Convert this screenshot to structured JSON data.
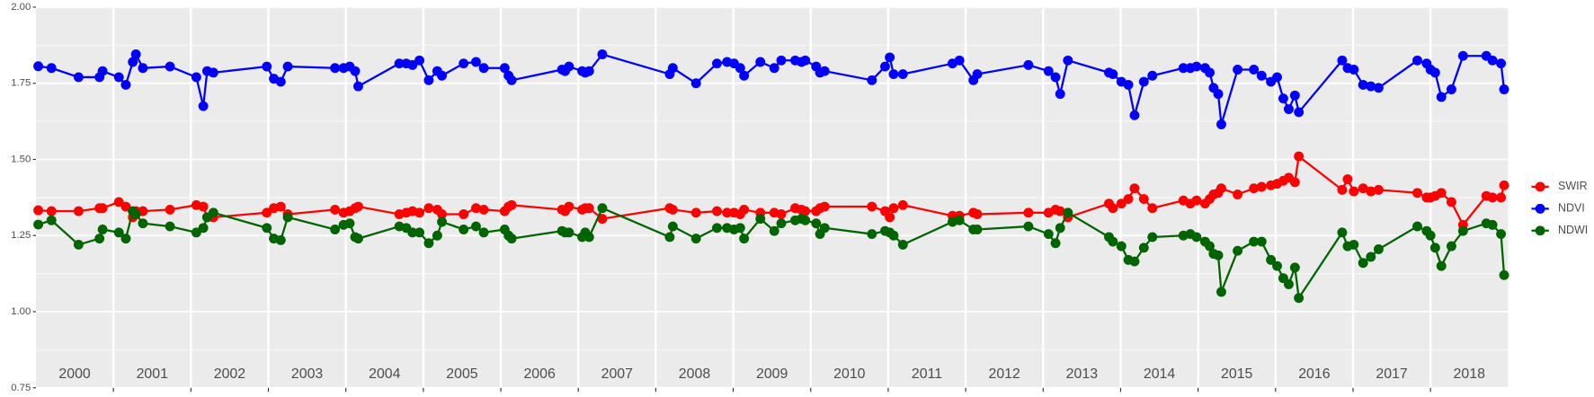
{
  "chart_data": {
    "type": "line",
    "x": [
      2000.03,
      2000.2,
      2000.55,
      2000.82,
      2000.86,
      2001.07,
      2001.16,
      2001.25,
      2001.29,
      2001.38,
      2001.73,
      2002.07,
      2002.16,
      2002.21,
      2002.29,
      2002.98,
      2003.07,
      2003.16,
      2003.25,
      2003.86,
      2003.97,
      2004.05,
      2004.12,
      2004.16,
      2004.69,
      2004.78,
      2004.86,
      2004.95,
      2005.07,
      2005.18,
      2005.24,
      2005.52,
      2005.68,
      2005.78,
      2006.05,
      2006.1,
      2006.14,
      2006.79,
      2006.83,
      2006.88,
      2007.05,
      2007.09,
      2007.14,
      2007.31,
      2008.18,
      2008.22,
      2008.52,
      2008.79,
      2008.92,
      2009.01,
      2009.09,
      2009.14,
      2009.35,
      2009.53,
      2009.62,
      2009.8,
      2009.88,
      2009.93,
      2010.07,
      2010.12,
      2010.18,
      2010.79,
      2010.96,
      2011.02,
      2011.07,
      2011.19,
      2011.83,
      2011.92,
      2012.1,
      2012.15,
      2012.81,
      2013.07,
      2013.16,
      2013.22,
      2013.32,
      2013.85,
      2013.9,
      2014.01,
      2014.1,
      2014.18,
      2014.3,
      2014.41,
      2014.81,
      2014.9,
      2014.98,
      2015.09,
      2015.15,
      2015.2,
      2015.26,
      2015.3,
      2015.51,
      2015.72,
      2015.82,
      2015.94,
      2016.02,
      2016.1,
      2016.17,
      2016.25,
      2016.3,
      2016.86,
      2016.93,
      2017.01,
      2017.13,
      2017.23,
      2017.33,
      2017.83,
      2017.95,
      2018.0,
      2018.06,
      2018.14,
      2018.27,
      2018.42,
      2018.72,
      2018.8,
      2018.91,
      2018.95
    ],
    "series": [
      {
        "name": "SWIR",
        "color": "#ff0000",
        "values": [
          1.333,
          1.33,
          1.33,
          1.34,
          1.34,
          1.36,
          1.345,
          1.31,
          1.33,
          1.33,
          1.335,
          1.35,
          1.345,
          1.31,
          1.31,
          1.325,
          1.34,
          1.345,
          1.32,
          1.335,
          1.325,
          1.33,
          1.34,
          1.345,
          1.32,
          1.325,
          1.33,
          1.325,
          1.34,
          1.335,
          1.32,
          1.32,
          1.34,
          1.335,
          1.33,
          1.345,
          1.35,
          1.335,
          1.33,
          1.345,
          1.335,
          1.34,
          1.34,
          1.305,
          1.34,
          1.335,
          1.325,
          1.33,
          1.325,
          1.325,
          1.32,
          1.335,
          1.325,
          1.325,
          1.32,
          1.34,
          1.335,
          1.33,
          1.33,
          1.34,
          1.345,
          1.345,
          1.33,
          1.31,
          1.34,
          1.35,
          1.315,
          1.315,
          1.325,
          1.32,
          1.325,
          1.325,
          1.335,
          1.33,
          1.31,
          1.355,
          1.34,
          1.355,
          1.37,
          1.405,
          1.37,
          1.34,
          1.365,
          1.355,
          1.365,
          1.355,
          1.37,
          1.385,
          1.39,
          1.405,
          1.385,
          1.405,
          1.41,
          1.415,
          1.42,
          1.43,
          1.44,
          1.425,
          1.51,
          1.4,
          1.435,
          1.395,
          1.405,
          1.395,
          1.4,
          1.39,
          1.375,
          1.375,
          1.38,
          1.39,
          1.36,
          1.285,
          1.38,
          1.375,
          1.375,
          1.415
        ]
      },
      {
        "name": "NDVI",
        "color": "#0000ff",
        "values": [
          1.806,
          1.8,
          1.77,
          1.77,
          1.79,
          1.77,
          1.745,
          1.82,
          1.845,
          1.8,
          1.805,
          1.77,
          1.675,
          1.79,
          1.785,
          1.805,
          1.765,
          1.755,
          1.805,
          1.8,
          1.8,
          1.805,
          1.79,
          1.74,
          1.815,
          1.815,
          1.81,
          1.825,
          1.76,
          1.79,
          1.775,
          1.815,
          1.82,
          1.8,
          1.8,
          1.775,
          1.76,
          1.795,
          1.79,
          1.805,
          1.79,
          1.785,
          1.79,
          1.845,
          1.78,
          1.8,
          1.75,
          1.815,
          1.82,
          1.815,
          1.8,
          1.775,
          1.82,
          1.8,
          1.825,
          1.825,
          1.82,
          1.825,
          1.805,
          1.785,
          1.79,
          1.76,
          1.805,
          1.835,
          1.78,
          1.78,
          1.815,
          1.825,
          1.76,
          1.78,
          1.81,
          1.79,
          1.77,
          1.715,
          1.825,
          1.785,
          1.78,
          1.755,
          1.745,
          1.645,
          1.755,
          1.775,
          1.8,
          1.8,
          1.805,
          1.8,
          1.785,
          1.735,
          1.715,
          1.615,
          1.795,
          1.795,
          1.775,
          1.755,
          1.77,
          1.7,
          1.665,
          1.71,
          1.655,
          1.825,
          1.8,
          1.795,
          1.745,
          1.74,
          1.735,
          1.825,
          1.815,
          1.795,
          1.785,
          1.705,
          1.73,
          1.84,
          1.84,
          1.825,
          1.815,
          1.73
        ]
      },
      {
        "name": "NDWI",
        "color": "#006400",
        "values": [
          1.286,
          1.3,
          1.22,
          1.24,
          1.27,
          1.26,
          1.24,
          1.33,
          1.32,
          1.29,
          1.28,
          1.26,
          1.275,
          1.31,
          1.325,
          1.275,
          1.24,
          1.235,
          1.31,
          1.27,
          1.285,
          1.29,
          1.245,
          1.24,
          1.28,
          1.275,
          1.26,
          1.26,
          1.225,
          1.25,
          1.295,
          1.27,
          1.28,
          1.26,
          1.27,
          1.25,
          1.24,
          1.265,
          1.26,
          1.26,
          1.245,
          1.26,
          1.245,
          1.34,
          1.245,
          1.28,
          1.24,
          1.275,
          1.275,
          1.27,
          1.275,
          1.24,
          1.305,
          1.265,
          1.29,
          1.3,
          1.305,
          1.3,
          1.29,
          1.255,
          1.275,
          1.255,
          1.265,
          1.26,
          1.25,
          1.22,
          1.295,
          1.3,
          1.27,
          1.27,
          1.28,
          1.255,
          1.225,
          1.275,
          1.325,
          1.245,
          1.23,
          1.215,
          1.17,
          1.165,
          1.21,
          1.245,
          1.25,
          1.255,
          1.245,
          1.23,
          1.215,
          1.19,
          1.185,
          1.065,
          1.2,
          1.23,
          1.23,
          1.17,
          1.15,
          1.11,
          1.09,
          1.145,
          1.045,
          1.26,
          1.215,
          1.22,
          1.16,
          1.18,
          1.205,
          1.28,
          1.265,
          1.25,
          1.21,
          1.15,
          1.215,
          1.265,
          1.29,
          1.285,
          1.255,
          1.12
        ]
      }
    ],
    "xlim": [
      2000,
      2019
    ],
    "xticks": [
      {
        "value": 2000.5,
        "label": "2000"
      },
      {
        "value": 2001.5,
        "label": "2001"
      },
      {
        "value": 2002.5,
        "label": "2002"
      },
      {
        "value": 2003.5,
        "label": "2003"
      },
      {
        "value": 2004.5,
        "label": "2004"
      },
      {
        "value": 2005.5,
        "label": "2005"
      },
      {
        "value": 2006.5,
        "label": "2006"
      },
      {
        "value": 2007.5,
        "label": "2007"
      },
      {
        "value": 2008.5,
        "label": "2008"
      },
      {
        "value": 2009.5,
        "label": "2009"
      },
      {
        "value": 2010.5,
        "label": "2010"
      },
      {
        "value": 2011.5,
        "label": "2011"
      },
      {
        "value": 2012.5,
        "label": "2012"
      },
      {
        "value": 2013.5,
        "label": "2013"
      },
      {
        "value": 2014.5,
        "label": "2014"
      },
      {
        "value": 2015.5,
        "label": "2015"
      },
      {
        "value": 2016.5,
        "label": "2016"
      },
      {
        "value": 2017.5,
        "label": "2017"
      },
      {
        "value": 2018.5,
        "label": "2018"
      }
    ],
    "xgrid": [
      2001,
      2002,
      2003,
      2004,
      2005,
      2006,
      2007,
      2008,
      2009,
      2010,
      2011,
      2012,
      2013,
      2014,
      2015,
      2016,
      2017,
      2018
    ],
    "ylim": [
      0.75,
      2.0
    ],
    "yticks": [
      {
        "value": 0.75,
        "label": "0.75"
      },
      {
        "value": 1.0,
        "label": "1.00"
      },
      {
        "value": 1.25,
        "label": "1.25"
      },
      {
        "value": 1.5,
        "label": "1.50"
      },
      {
        "value": 1.75,
        "label": "1.75"
      },
      {
        "value": 2.0,
        "label": "2.00"
      }
    ],
    "grid": true,
    "legend": "right"
  }
}
